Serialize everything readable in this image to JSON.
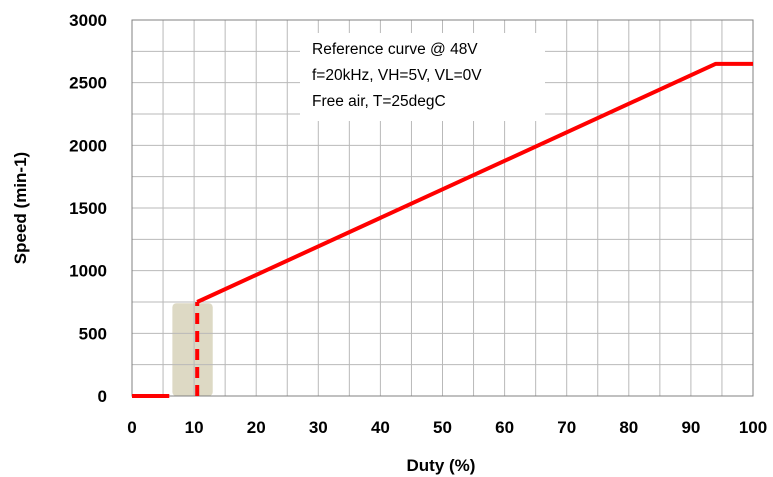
{
  "chart_data": {
    "type": "line",
    "title": "",
    "xlabel": "Duty (%)",
    "ylabel": "Speed (min-1)",
    "xlim": [
      0,
      100
    ],
    "ylim": [
      0,
      3000
    ],
    "x_ticks": [
      0,
      10,
      20,
      30,
      40,
      50,
      60,
      70,
      80,
      90,
      100
    ],
    "y_ticks": [
      0,
      500,
      1000,
      1500,
      2000,
      2500,
      3000
    ],
    "grid": true,
    "annotation_lines": [
      "Reference  curve @ 48V",
      "f=20kHz,  VH=5V, VL=0V",
      "Free air, T=25degC"
    ],
    "series": [
      {
        "color": "#ff0000",
        "segments": [
          {
            "style": "solid",
            "points": [
              [
                0,
                0
              ],
              [
                6,
                0
              ]
            ]
          },
          {
            "style": "dashed",
            "points": [
              [
                10.5,
                0
              ],
              [
                10.5,
                750
              ]
            ]
          },
          {
            "style": "solid",
            "points": [
              [
                10.5,
                750
              ],
              [
                94,
                2650
              ],
              [
                100,
                2650
              ]
            ]
          }
        ]
      }
    ],
    "shaded_region": {
      "x": [
        6.5,
        13
      ],
      "y": [
        0,
        740
      ],
      "color": "#ddd9c4"
    }
  }
}
